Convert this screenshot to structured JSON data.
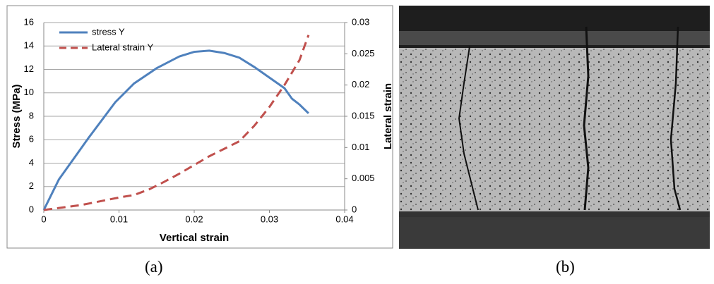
{
  "chart_data": {
    "type": "line",
    "xlabel": "Vertical strain",
    "ylabel": "Stress (MPa)",
    "y2label": "Lateral strain",
    "xlim": [
      0,
      0.04
    ],
    "xticks": [
      0,
      0.01,
      0.02,
      0.03,
      0.04
    ],
    "ylim": [
      0,
      16
    ],
    "yticks": [
      0,
      2,
      4,
      6,
      8,
      10,
      12,
      14,
      16
    ],
    "y2lim": [
      0,
      0.03
    ],
    "y2ticks": [
      0,
      0.005,
      0.01,
      0.015,
      0.02,
      0.025,
      0.03
    ],
    "grid": true,
    "legend": "upper left",
    "series": [
      {
        "name": "stress Y",
        "color": "#4f81bd",
        "dashed": false,
        "x": [
          0,
          0.002,
          0.004,
          0.006,
          0.0095,
          0.012,
          0.015,
          0.018,
          0.02,
          0.022,
          0.024,
          0.026,
          0.028,
          0.03,
          0.032,
          0.033,
          0.034,
          0.0352
        ],
        "values": [
          0,
          2.6,
          4.4,
          6.2,
          9.2,
          10.8,
          12.1,
          13.1,
          13.5,
          13.6,
          13.4,
          13.0,
          12.2,
          11.3,
          10.4,
          9.5,
          9.0,
          8.25
        ]
      },
      {
        "name": "Lateral strain Y",
        "color": "#c0504d",
        "dashed": true,
        "axis": "y2",
        "x": [
          0,
          0.005,
          0.01,
          0.012,
          0.014,
          0.016,
          0.018,
          0.02,
          0.022,
          0.024,
          0.026,
          0.028,
          0.03,
          0.032,
          0.034,
          0.0352
        ],
        "values": [
          0,
          0.0008,
          0.002,
          0.0024,
          0.0033,
          0.0045,
          0.0058,
          0.0072,
          0.0086,
          0.0098,
          0.011,
          0.0135,
          0.0165,
          0.02,
          0.024,
          0.028
        ]
      }
    ]
  },
  "captions": [
    "(a)",
    "(b)"
  ]
}
